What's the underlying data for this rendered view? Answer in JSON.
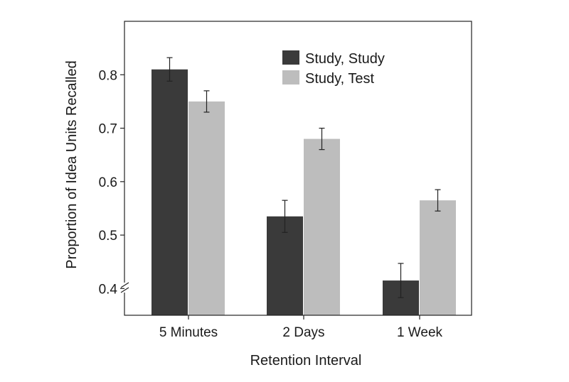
{
  "chart_data": {
    "type": "bar",
    "xlabel": "Retention Interval",
    "ylabel": "Proportion of Idea Units Recalled",
    "ylim": [
      0.35,
      0.9
    ],
    "yticks": [
      "0.4",
      "0.5",
      "0.6",
      "0.7",
      "0.8"
    ],
    "axis_break": true,
    "categories": [
      "5 Minutes",
      "2 Days",
      "1 Week"
    ],
    "series": [
      {
        "name": "Study, Study",
        "color": "#3a3a3a",
        "values": [
          0.81,
          0.535,
          0.415
        ],
        "errors": [
          0.022,
          0.03,
          0.032
        ]
      },
      {
        "name": "Study, Test",
        "color": "#bdbdbd",
        "values": [
          0.75,
          0.68,
          0.565
        ],
        "errors": [
          0.02,
          0.02,
          0.02
        ]
      }
    ],
    "legend": {
      "position": "top-right"
    },
    "grid": false
  }
}
